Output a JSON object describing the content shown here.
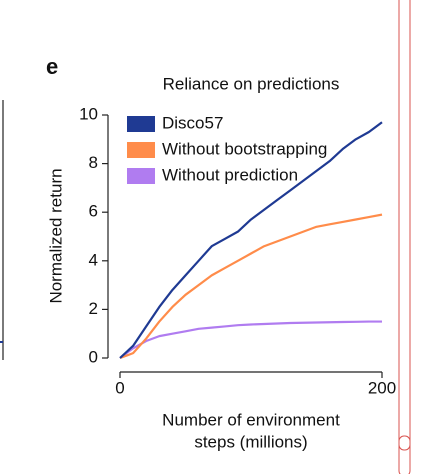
{
  "panel_label": "e",
  "chart_data": {
    "type": "line",
    "title": "Reliance on predictions",
    "xlabel": [
      "Number of environment",
      "steps (millions)"
    ],
    "ylabel": "Normalized return",
    "x": [
      0,
      10,
      20,
      30,
      40,
      50,
      60,
      70,
      80,
      90,
      100,
      110,
      120,
      130,
      140,
      150,
      160,
      170,
      180,
      190,
      200
    ],
    "series": [
      {
        "name": "Disco57",
        "color": "#1f3a93",
        "values": [
          0,
          0.5,
          1.3,
          2.1,
          2.8,
          3.4,
          4.0,
          4.6,
          4.9,
          5.2,
          5.7,
          6.1,
          6.5,
          6.9,
          7.3,
          7.7,
          8.1,
          8.6,
          9.0,
          9.3,
          9.7
        ]
      },
      {
        "name": "Without bootstrapping",
        "color": "#ff8c4a",
        "values": [
          0,
          0.2,
          0.8,
          1.5,
          2.1,
          2.6,
          3.0,
          3.4,
          3.7,
          4.0,
          4.3,
          4.6,
          4.8,
          5.0,
          5.2,
          5.4,
          5.5,
          5.6,
          5.7,
          5.8,
          5.9
        ]
      },
      {
        "name": "Without prediction",
        "color": "#b07cf0",
        "values": [
          0,
          0.4,
          0.7,
          0.9,
          1.0,
          1.1,
          1.2,
          1.25,
          1.3,
          1.35,
          1.38,
          1.4,
          1.42,
          1.44,
          1.45,
          1.46,
          1.47,
          1.48,
          1.49,
          1.5,
          1.5
        ]
      }
    ],
    "xlim": [
      0,
      200
    ],
    "xticks": [
      0,
      200
    ],
    "ylim": [
      0,
      10
    ],
    "yticks": [
      0,
      2,
      4,
      6,
      8,
      10
    ],
    "legend": "upper left",
    "grid": false
  }
}
